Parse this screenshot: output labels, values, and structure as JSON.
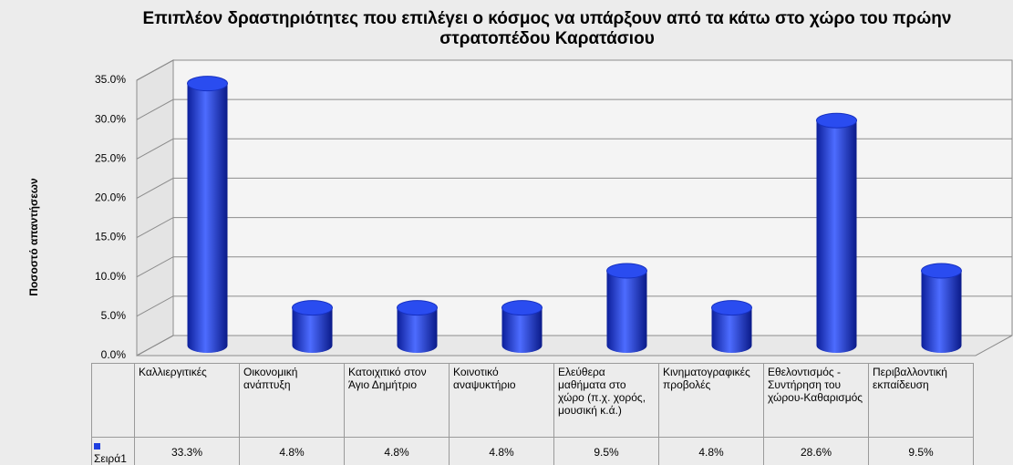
{
  "chart_data": {
    "type": "bar3d",
    "title": "Επιπλέον δραστηριότητες  που επιλέγει ο κόσμος να υπάρξουν από τα κάτω στο χώρο του πρώην στρατοπέδου Καρατάσιου",
    "y_label": "Ποσοστό απαντήσεων",
    "categories": [
      "Καλλιεργιτικές",
      "Οικονομική ανάπτυξη",
      "Κατοιχιτικό στον Άγιο Δημήτριο",
      "Κοινοτικό αναψυκτήριο",
      "Ελεύθερα μαθήματα στο χώρο (π.χ. χορός, μουσική κ.ά.)",
      "Κινηματογραφικές προβολές",
      "Εθελοντισμός - Συντήρηση του χώρου-Καθαρισμός",
      "Περιβαλλοντική εκπαίδευση"
    ],
    "series": [
      {
        "name": "Σειρά1",
        "color": "#1f3fe0",
        "values": [
          33.3,
          4.8,
          4.8,
          4.8,
          9.5,
          4.8,
          28.6,
          9.5
        ],
        "value_labels": [
          "33.3%",
          "4.8%",
          "4.8%",
          "4.8%",
          "9.5%",
          "4.8%",
          "28.6%",
          "9.5%"
        ]
      }
    ],
    "ylim": [
      0,
      35
    ],
    "yticks": [
      {
        "value": 0,
        "label": "0.0%"
      },
      {
        "value": 5,
        "label": "5.0%"
      },
      {
        "value": 10,
        "label": "10.0%"
      },
      {
        "value": 15,
        "label": "15.0%"
      },
      {
        "value": 20,
        "label": "20.0%"
      },
      {
        "value": 25,
        "label": "25.0%"
      },
      {
        "value": 30,
        "label": "30.0%"
      },
      {
        "value": 35,
        "label": "35.0%"
      }
    ],
    "grid": true
  }
}
